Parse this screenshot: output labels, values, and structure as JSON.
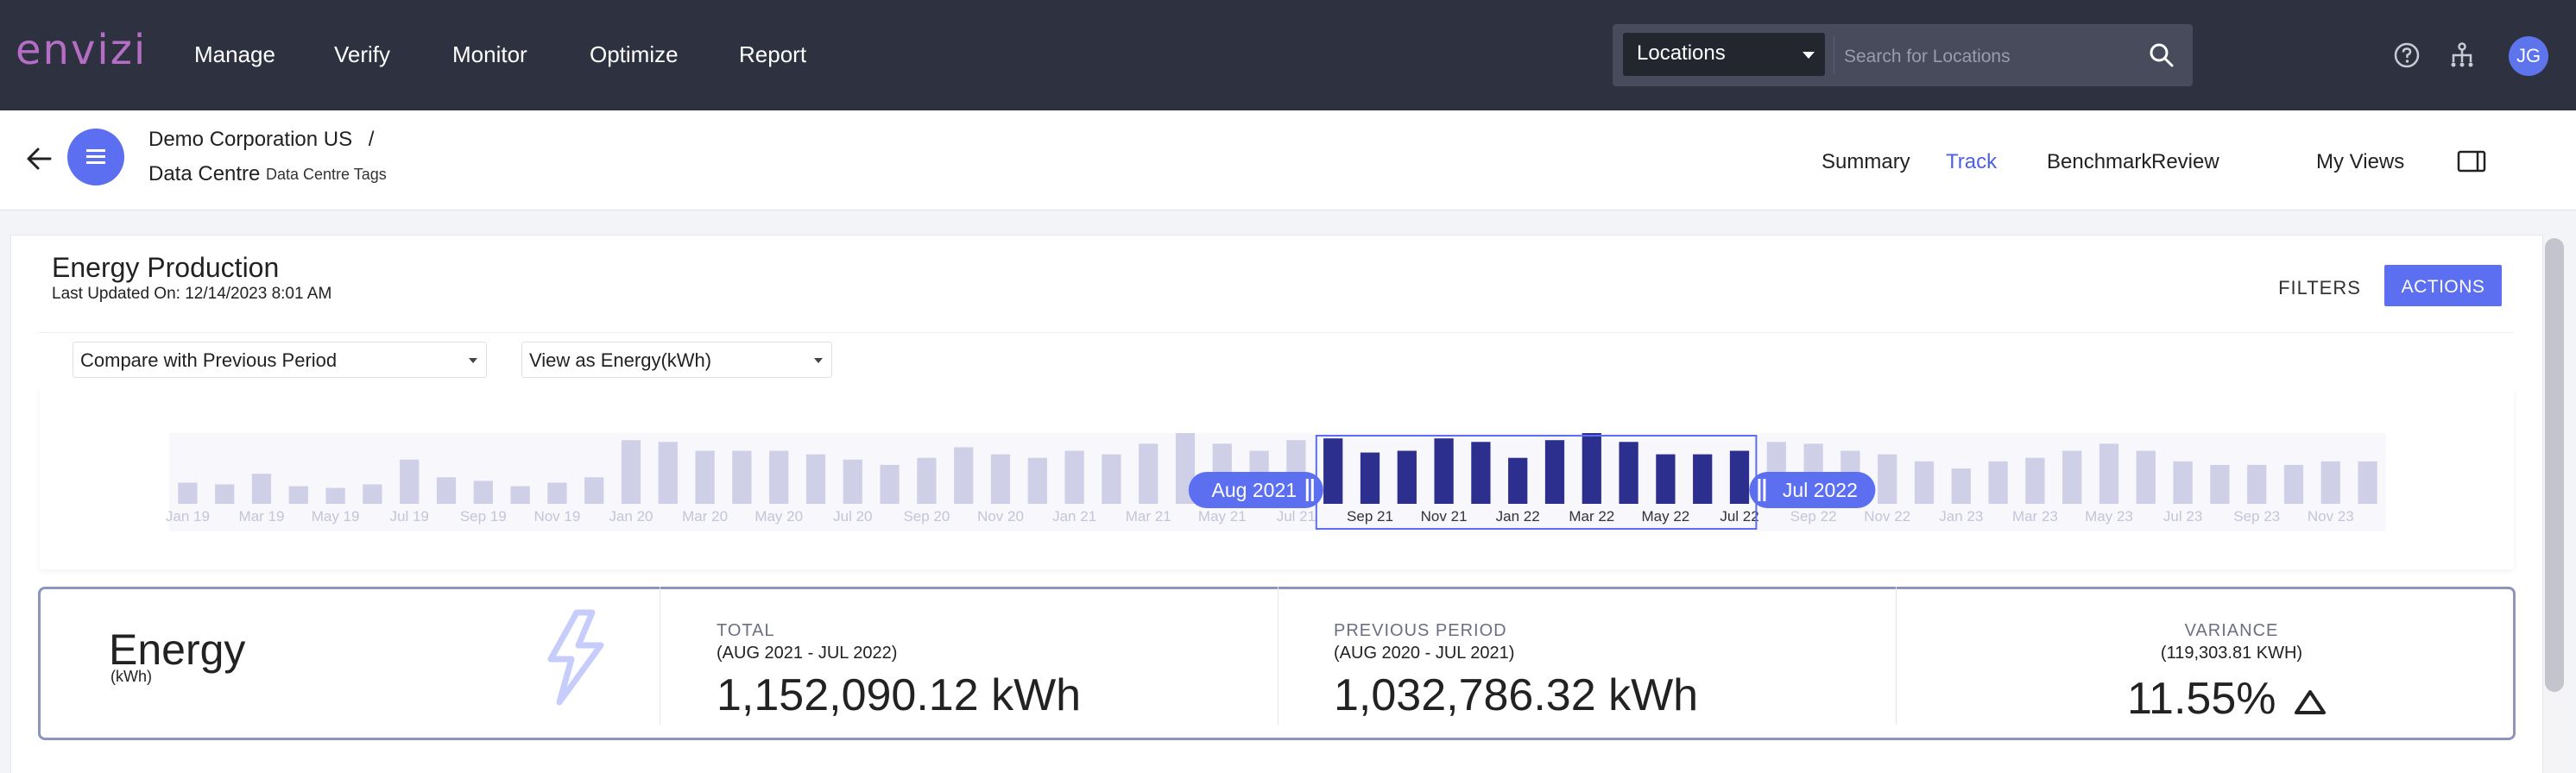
{
  "nav": {
    "logo": "envizi",
    "items": [
      "Manage",
      "Verify",
      "Monitor",
      "Optimize",
      "Report"
    ],
    "location_select": "Locations",
    "search_placeholder": "Search for Locations",
    "avatar_initials": "JG",
    "icons": [
      "help-icon",
      "hierarchy-icon"
    ]
  },
  "subheader": {
    "breadcrumb_org": "Demo Corporation US",
    "breadcrumb_sep": "/",
    "breadcrumb_location": "Data Centre",
    "breadcrumb_tag": "Data Centre Tags",
    "tabs": [
      "Summary",
      "Track",
      "Benchmark",
      "Review",
      "My Views"
    ],
    "active_tab": "Track"
  },
  "page": {
    "title": "Energy Production",
    "updated": "Last Updated On: 12/14/2023 8:01 AM",
    "filters_label": "FILTERS",
    "actions_label": "ACTIONS",
    "compare_select": "Compare with Previous Period",
    "view_select": "View as Energy(kWh)"
  },
  "chart_data": {
    "type": "bar",
    "categories": [
      "Jan 19",
      "Feb 19",
      "Mar 19",
      "Apr 19",
      "May 19",
      "Jun 19",
      "Jul 19",
      "Aug 19",
      "Sep 19",
      "Oct 19",
      "Nov 19",
      "Dec 19",
      "Jan 20",
      "Feb 20",
      "Mar 20",
      "Apr 20",
      "May 20",
      "Jun 20",
      "Jul 20",
      "Aug 20",
      "Sep 20",
      "Oct 20",
      "Nov 20",
      "Dec 20",
      "Jan 21",
      "Feb 21",
      "Mar 21",
      "Apr 21",
      "May 21",
      "Jun 21",
      "Jul 21",
      "Aug 21",
      "Sep 21",
      "Oct 21",
      "Nov 21",
      "Dec 21",
      "Jan 22",
      "Feb 22",
      "Mar 22",
      "Apr 22",
      "May 22",
      "Jun 22",
      "Jul 22",
      "Aug 22",
      "Sep 22",
      "Oct 22",
      "Nov 22",
      "Dec 22",
      "Jan 23",
      "Feb 23",
      "Mar 23",
      "Apr 23",
      "May 23",
      "Jun 23",
      "Jul 23",
      "Aug 23",
      "Sep 23",
      "Oct 23",
      "Nov 23",
      "Dec 23"
    ],
    "values": [
      12,
      11,
      17,
      10,
      9,
      11,
      25,
      15,
      13,
      10,
      12,
      15,
      36,
      35,
      30,
      30,
      30,
      28,
      25,
      22,
      26,
      32,
      28,
      26,
      30,
      28,
      34,
      40,
      34,
      30,
      36,
      37,
      29,
      30,
      37,
      35,
      26,
      36,
      40,
      35,
      28,
      28,
      30,
      35,
      34,
      30,
      28,
      24,
      20,
      24,
      26,
      30,
      34,
      30,
      24,
      22,
      22,
      22,
      24,
      24
    ],
    "selected_range": [
      "Aug 21",
      "Jul 22"
    ],
    "tick_labels": [
      "Jan 19",
      "Mar 19",
      "May 19",
      "Jul 19",
      "Sep 19",
      "Nov 19",
      "Jan 20",
      "Mar 20",
      "May 20",
      "Jul 20",
      "Sep 20",
      "Nov 20",
      "Jan 21",
      "Mar 21",
      "May 21",
      "Jul 21",
      "Sep 21",
      "Nov 21",
      "Jan 22",
      "Mar 22",
      "May 22",
      "Jul 22",
      "Sep 22",
      "Nov 22",
      "Jan 23",
      "Mar 23",
      "May 23",
      "Jul 23",
      "Sep 23",
      "Nov 23"
    ],
    "handle_start_label": "Aug 2021",
    "handle_end_label": "Jul 2022",
    "colors": {
      "selected": "#2d2f8f",
      "unselected": "#cfd0e8",
      "handle": "#5b6ff0"
    }
  },
  "stats": {
    "energy_title": "Energy",
    "energy_unit": "(kWh)",
    "total_label": "TOTAL",
    "total_range": "(AUG 2021 - JUL 2022)",
    "total_value": "1,152,090.12 kWh",
    "prev_label": "PREVIOUS PERIOD",
    "prev_range": "(AUG 2020 - JUL 2021)",
    "prev_value": "1,032,786.32 kWh",
    "var_label": "VARIANCE",
    "var_range": "(119,303.81 KWH)",
    "var_value": "11.55%"
  }
}
